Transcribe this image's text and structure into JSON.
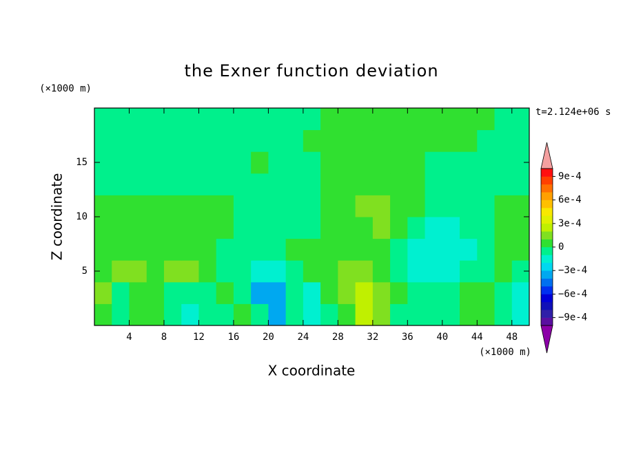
{
  "chart_data": {
    "type": "contour",
    "title": "the Exner function deviation",
    "xlabel": "X coordinate",
    "ylabel": "Z coordinate",
    "x_unit": "(×1000 m)",
    "y_unit": "(×1000 m)",
    "annotation": "t=2.124e+06 s",
    "xlim": [
      0,
      50
    ],
    "ylim": [
      0,
      20
    ],
    "xticks": [
      4,
      8,
      12,
      16,
      20,
      24,
      28,
      32,
      36,
      40,
      44,
      48
    ],
    "yticks": [
      5,
      10,
      15
    ],
    "x": [
      1,
      3,
      5,
      7,
      9,
      11,
      13,
      15,
      17,
      19,
      21,
      23,
      25,
      27,
      29,
      31,
      33,
      35,
      37,
      39,
      41,
      43,
      45,
      47,
      49
    ],
    "y": [
      1,
      3,
      5,
      7,
      9,
      11,
      13,
      15,
      17,
      19
    ],
    "z": [
      [
        5e-05,
        -5e-05,
        5e-05,
        5e-05,
        -5e-05,
        -0.00015,
        -5e-05,
        -5e-05,
        5e-05,
        -5e-05,
        -0.00035,
        -5e-05,
        -0.00015,
        -5e-05,
        5e-05,
        0.00025,
        0.00015,
        -5e-05,
        -5e-05,
        -5e-05,
        -5e-05,
        5e-05,
        5e-05,
        -5e-05,
        -0.00015
      ],
      [
        0.00015,
        -5e-05,
        5e-05,
        5e-05,
        -5e-05,
        -5e-05,
        -5e-05,
        5e-05,
        -5e-05,
        -0.00035,
        -0.00035,
        -5e-05,
        -0.00015,
        5e-05,
        0.00015,
        0.00025,
        0.00015,
        5e-05,
        -5e-05,
        -5e-05,
        -5e-05,
        5e-05,
        5e-05,
        -5e-05,
        -0.00015
      ],
      [
        5e-05,
        0.00015,
        0.00015,
        5e-05,
        0.00015,
        0.00015,
        5e-05,
        -5e-05,
        -5e-05,
        -0.00015,
        -0.00015,
        -5e-05,
        5e-05,
        5e-05,
        0.00015,
        0.00015,
        5e-05,
        -5e-05,
        -0.00015,
        -0.00015,
        -0.00015,
        -5e-05,
        -5e-05,
        5e-05,
        -5e-05
      ],
      [
        5e-05,
        5e-05,
        5e-05,
        5e-05,
        5e-05,
        5e-05,
        5e-05,
        -5e-05,
        -5e-05,
        -5e-05,
        -5e-05,
        5e-05,
        5e-05,
        5e-05,
        5e-05,
        5e-05,
        5e-05,
        -5e-05,
        -0.00015,
        -0.00015,
        -0.00015,
        -0.00015,
        -5e-05,
        5e-05,
        5e-05
      ],
      [
        5e-05,
        5e-05,
        5e-05,
        5e-05,
        5e-05,
        5e-05,
        5e-05,
        5e-05,
        -5e-05,
        -5e-05,
        -5e-05,
        -5e-05,
        -5e-05,
        5e-05,
        5e-05,
        5e-05,
        0.00015,
        5e-05,
        -5e-05,
        -0.00015,
        -0.00015,
        -5e-05,
        -5e-05,
        5e-05,
        5e-05
      ],
      [
        5e-05,
        5e-05,
        5e-05,
        5e-05,
        5e-05,
        5e-05,
        5e-05,
        5e-05,
        -5e-05,
        -5e-05,
        -5e-05,
        -5e-05,
        -5e-05,
        5e-05,
        5e-05,
        0.00015,
        0.00015,
        5e-05,
        5e-05,
        -5e-05,
        -5e-05,
        -5e-05,
        -5e-05,
        5e-05,
        5e-05
      ],
      [
        -5e-05,
        -5e-05,
        -5e-05,
        -5e-05,
        -5e-05,
        -5e-05,
        -5e-05,
        -5e-05,
        -5e-05,
        -5e-05,
        -5e-05,
        -5e-05,
        -5e-05,
        5e-05,
        5e-05,
        5e-05,
        5e-05,
        5e-05,
        5e-05,
        -5e-05,
        -5e-05,
        -5e-05,
        -5e-05,
        -5e-05,
        -5e-05
      ],
      [
        -5e-05,
        -5e-05,
        -5e-05,
        -5e-05,
        -5e-05,
        -5e-05,
        -5e-05,
        -5e-05,
        -5e-05,
        5e-05,
        -5e-05,
        -5e-05,
        -5e-05,
        5e-05,
        5e-05,
        5e-05,
        5e-05,
        5e-05,
        5e-05,
        -5e-05,
        -5e-05,
        -5e-05,
        -5e-05,
        -5e-05,
        -5e-05
      ],
      [
        -5e-05,
        -5e-05,
        -5e-05,
        -5e-05,
        -5e-05,
        -5e-05,
        -5e-05,
        -5e-05,
        -5e-05,
        -5e-05,
        -5e-05,
        -5e-05,
        5e-05,
        5e-05,
        5e-05,
        5e-05,
        5e-05,
        5e-05,
        5e-05,
        5e-05,
        5e-05,
        5e-05,
        -5e-05,
        -5e-05,
        -5e-05
      ],
      [
        -5e-05,
        -5e-05,
        -5e-05,
        -5e-05,
        -5e-05,
        -5e-05,
        -5e-05,
        -5e-05,
        -5e-05,
        -5e-05,
        -5e-05,
        -5e-05,
        -5e-05,
        5e-05,
        5e-05,
        5e-05,
        5e-05,
        5e-05,
        5e-05,
        5e-05,
        5e-05,
        5e-05,
        5e-05,
        -5e-05,
        -5e-05
      ]
    ],
    "levels": [
      -0.001,
      -0.0009,
      -0.0008,
      -0.0007,
      -0.0006,
      -0.0005,
      -0.0004,
      -0.0003,
      -0.0002,
      -0.0001,
      0,
      0.0001,
      0.0002,
      0.0003,
      0.0004,
      0.0005,
      0.0006,
      0.0007,
      0.0008,
      0.0009,
      0.001
    ],
    "colors": [
      "#5a10a0",
      "#3020a8",
      "#1010b8",
      "#0000d8",
      "#0030f0",
      "#0070f0",
      "#00a8f0",
      "#00d8f0",
      "#00f0d0",
      "#00f08c",
      "#30e030",
      "#80e020",
      "#c0f000",
      "#e0f000",
      "#f8e800",
      "#ffc000",
      "#ffa000",
      "#ff7000",
      "#ff4000",
      "#ff1010"
    ],
    "under_color": "#8c00a8",
    "over_color": "#f4a0a0",
    "colorbar_ticks": [
      {
        "value": 0.0009,
        "label": "9e-4"
      },
      {
        "value": 0.0006,
        "label": "6e-4"
      },
      {
        "value": 0.0003,
        "label": "3e-4"
      },
      0,
      {
        "value": -0.0003,
        "label": "−3e-4"
      },
      {
        "value": -0.0006,
        "label": "−6e-4"
      },
      {
        "value": -0.0009,
        "label": "−9e-4"
      }
    ]
  }
}
